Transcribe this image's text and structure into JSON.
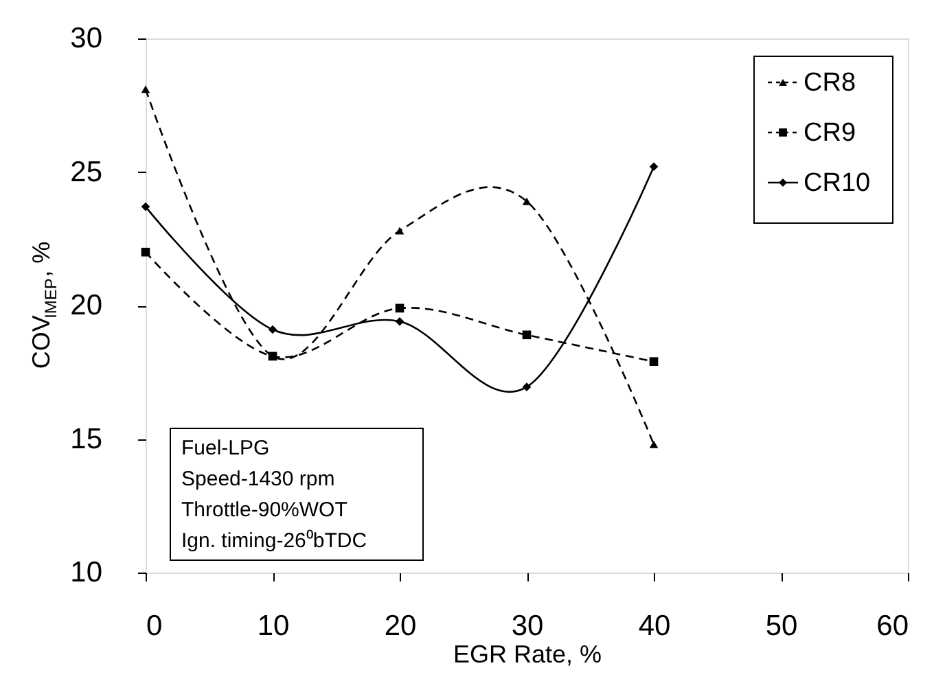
{
  "chart_data": {
    "type": "line",
    "xlabel": "EGR Rate, %",
    "ylabel": "COV$_{IMEP}$, %",
    "x": [
      0,
      10,
      20,
      30,
      40
    ],
    "series": [
      {
        "name": "CR8",
        "color": "#000000",
        "marker": "triangle",
        "line_style": "dashed",
        "values": [
          28.1,
          18.1,
          22.8,
          23.9,
          14.8
        ]
      },
      {
        "name": "CR9",
        "color": "#000000",
        "marker": "square",
        "line_style": "dashed",
        "values": [
          22.0,
          18.1,
          19.9,
          18.9,
          17.9
        ]
      },
      {
        "name": "CR10",
        "color": "#000000",
        "marker": "diamond",
        "line_style": "solid",
        "values": [
          23.7,
          19.1,
          19.4,
          16.95,
          25.2
        ]
      }
    ],
    "xlim": [
      0,
      60
    ],
    "xticks": [
      0,
      10,
      20,
      30,
      40,
      50,
      60
    ],
    "ylim": [
      10,
      30
    ],
    "yticks": [
      10,
      15,
      20,
      25,
      30
    ],
    "grid": false,
    "legend": "top right",
    "annotations": [
      "Fuel-LPG",
      "Speed-1430 rpm",
      "Throttle-90%WOT",
      "Ign. timing-26⁰bTDC"
    ]
  }
}
